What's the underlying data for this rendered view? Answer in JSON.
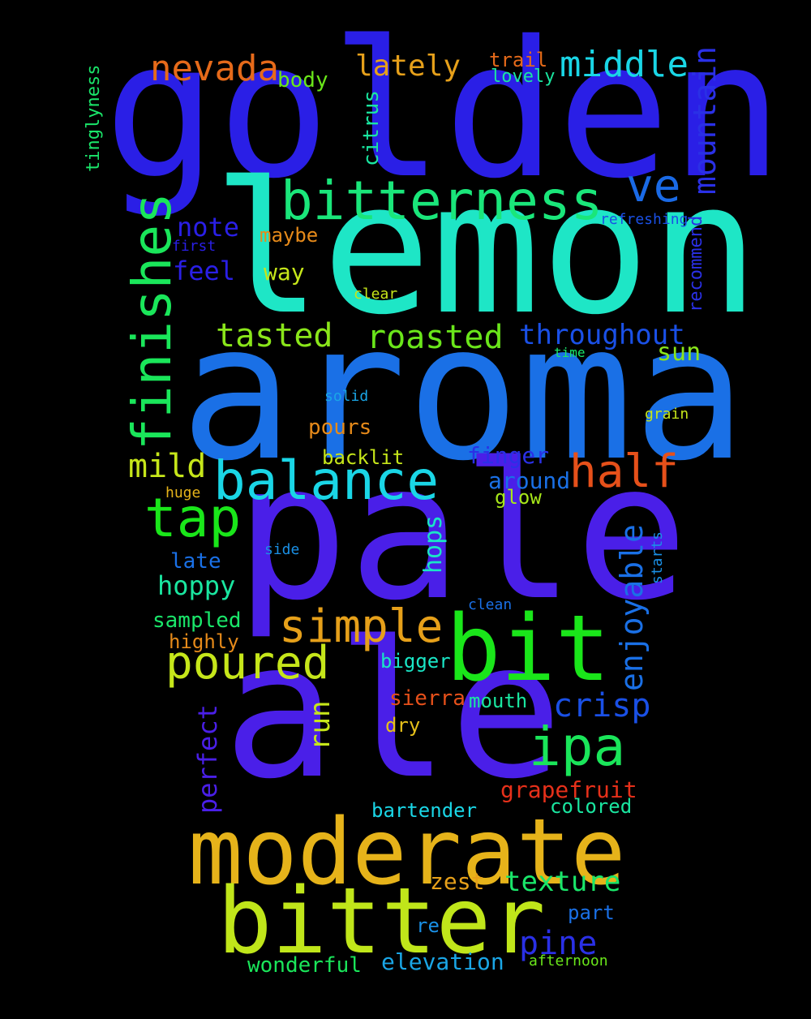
{
  "words": [
    {
      "text": "golden",
      "color": "#2a1fe6"
    },
    {
      "text": "lemon",
      "color": "#1ee6c6"
    },
    {
      "text": "aroma",
      "color": "#1a70e6"
    },
    {
      "text": "pale",
      "color": "#4a1fe8"
    },
    {
      "text": "ale",
      "color": "#4a1fe8"
    },
    {
      "text": "moderate",
      "color": "#e6b31a"
    },
    {
      "text": "bitter",
      "color": "#c0e61a"
    },
    {
      "text": "bit",
      "color": "#1ae61a"
    },
    {
      "text": "bitterness",
      "color": "#1ae67a"
    },
    {
      "text": "balance",
      "color": "#1ad6e6"
    },
    {
      "text": "finishes",
      "color": "#1ae65a"
    },
    {
      "text": "tap",
      "color": "#1ae61a"
    },
    {
      "text": "simple",
      "color": "#e6a01a"
    },
    {
      "text": "poured",
      "color": "#c6e61a"
    },
    {
      "text": "ipa",
      "color": "#1ae65a"
    },
    {
      "text": "half",
      "color": "#e6501a"
    },
    {
      "text": "ve",
      "color": "#1a6ae6"
    },
    {
      "text": "nevada",
      "color": "#e66a1a"
    },
    {
      "text": "middle",
      "color": "#1ad6e6"
    },
    {
      "text": "lately",
      "color": "#e6a01a"
    },
    {
      "text": "mountain",
      "color": "#2a30e6"
    },
    {
      "text": "roasted",
      "color": "#6ae61a"
    },
    {
      "text": "tasted",
      "color": "#8ae61a"
    },
    {
      "text": "mild",
      "color": "#c6e61a"
    },
    {
      "text": "throughout",
      "color": "#1a50e6"
    },
    {
      "text": "enjoyable",
      "color": "#1a70e6"
    },
    {
      "text": "crisp",
      "color": "#1a50e6"
    },
    {
      "text": "pine",
      "color": "#2a30e6"
    },
    {
      "text": "texture",
      "color": "#1ae66a"
    },
    {
      "text": "run",
      "color": "#c6e61a"
    },
    {
      "text": "perfect",
      "color": "#4a1fe8"
    },
    {
      "text": "hops",
      "color": "#1ae6c6"
    },
    {
      "text": "note",
      "color": "#2a1fe6"
    },
    {
      "text": "feel",
      "color": "#2a1fe6"
    },
    {
      "text": "way",
      "color": "#c6e61a"
    },
    {
      "text": "maybe",
      "color": "#e68a1a"
    },
    {
      "text": "citrus",
      "color": "#1ae6a0"
    },
    {
      "text": "body",
      "color": "#6ae61a"
    },
    {
      "text": "trail",
      "color": "#e66a1a"
    },
    {
      "text": "lovely",
      "color": "#1ae6a0"
    },
    {
      "text": "tinglyness",
      "color": "#1ae66a"
    },
    {
      "text": "recommend",
      "color": "#2a30e6"
    },
    {
      "text": "refreshing",
      "color": "#1a50e6"
    },
    {
      "text": "first",
      "color": "#2a1fe6"
    },
    {
      "text": "clear",
      "color": "#c6e61a"
    },
    {
      "text": "time",
      "color": "#1ae66a"
    },
    {
      "text": "sun",
      "color": "#8ae61a"
    },
    {
      "text": "solid",
      "color": "#1aa6e6"
    },
    {
      "text": "grain",
      "color": "#c6e61a"
    },
    {
      "text": "pours",
      "color": "#e68a1a"
    },
    {
      "text": "finger",
      "color": "#2a30e6"
    },
    {
      "text": "backlit",
      "color": "#c6e61a"
    },
    {
      "text": "around",
      "color": "#1a70e6"
    },
    {
      "text": "glow",
      "color": "#a6e61a"
    },
    {
      "text": "huge",
      "color": "#e6b31a"
    },
    {
      "text": "late",
      "color": "#1a70e6"
    },
    {
      "text": "side",
      "color": "#1a90e6"
    },
    {
      "text": "starts",
      "color": "#1a90e6"
    },
    {
      "text": "hoppy",
      "color": "#1ae6a0"
    },
    {
      "text": "clean",
      "color": "#1a70e6"
    },
    {
      "text": "sampled",
      "color": "#1ae66a"
    },
    {
      "text": "highly",
      "color": "#e68a1a"
    },
    {
      "text": "bigger",
      "color": "#1ae6c6"
    },
    {
      "text": "sierra",
      "color": "#e6501a"
    },
    {
      "text": "mouth",
      "color": "#1ae6a0"
    },
    {
      "text": "dry",
      "color": "#e6c01a"
    },
    {
      "text": "grapefruit",
      "color": "#e6301a"
    },
    {
      "text": "colored",
      "color": "#1ae6a0"
    },
    {
      "text": "bartender",
      "color": "#1ad6e6"
    },
    {
      "text": "zest",
      "color": "#e6a01a"
    },
    {
      "text": "part",
      "color": "#1a70e6"
    },
    {
      "text": "re",
      "color": "#1a90e6"
    },
    {
      "text": "wonderful",
      "color": "#1ae65a"
    },
    {
      "text": "elevation",
      "color": "#1aa6e6"
    },
    {
      "text": "afternoon",
      "color": "#6ae61a"
    }
  ]
}
